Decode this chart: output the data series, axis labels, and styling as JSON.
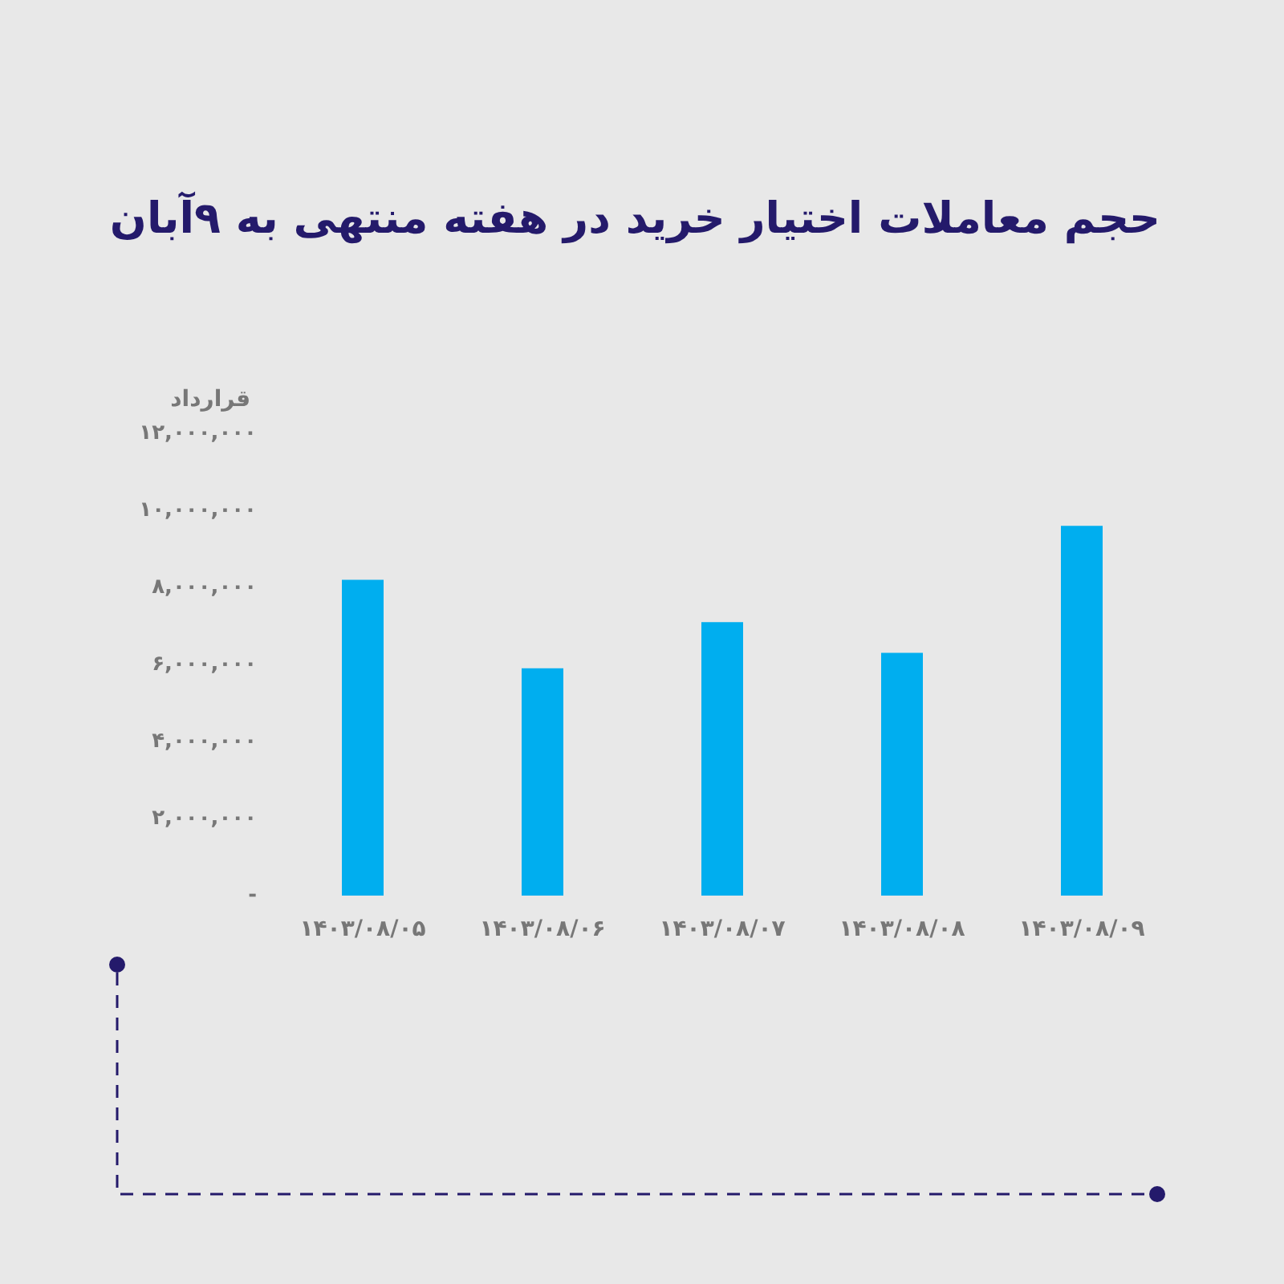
{
  "chart_data": {
    "type": "bar",
    "title": "حجم معاملات اختیار خرید در هفته منتهی به ۹آبان",
    "ylabel": "قرارداد",
    "categories": [
      "۱۴۰۳/۰۸/۰۵",
      "۱۴۰۳/۰۸/۰۶",
      "۱۴۰۳/۰۸/۰۷",
      "۱۴۰۳/۰۸/۰۸",
      "۱۴۰۳/۰۸/۰۹"
    ],
    "values": [
      8200000,
      5900000,
      7100000,
      6300000,
      9600000
    ],
    "color": "#00aeef",
    "ylim": [
      0,
      12000000
    ],
    "yticks": [
      {
        "value": 0,
        "label": "-"
      },
      {
        "value": 2000000,
        "label": "۲,۰۰۰,۰۰۰"
      },
      {
        "value": 4000000,
        "label": "۴,۰۰۰,۰۰۰"
      },
      {
        "value": 6000000,
        "label": "۶,۰۰۰,۰۰۰"
      },
      {
        "value": 8000000,
        "label": "۸,۰۰۰,۰۰۰"
      },
      {
        "value": 10000000,
        "label": "۱۰,۰۰۰,۰۰۰"
      },
      {
        "value": 12000000,
        "label": "۱۲,۰۰۰,۰۰۰"
      }
    ],
    "grid": false
  }
}
